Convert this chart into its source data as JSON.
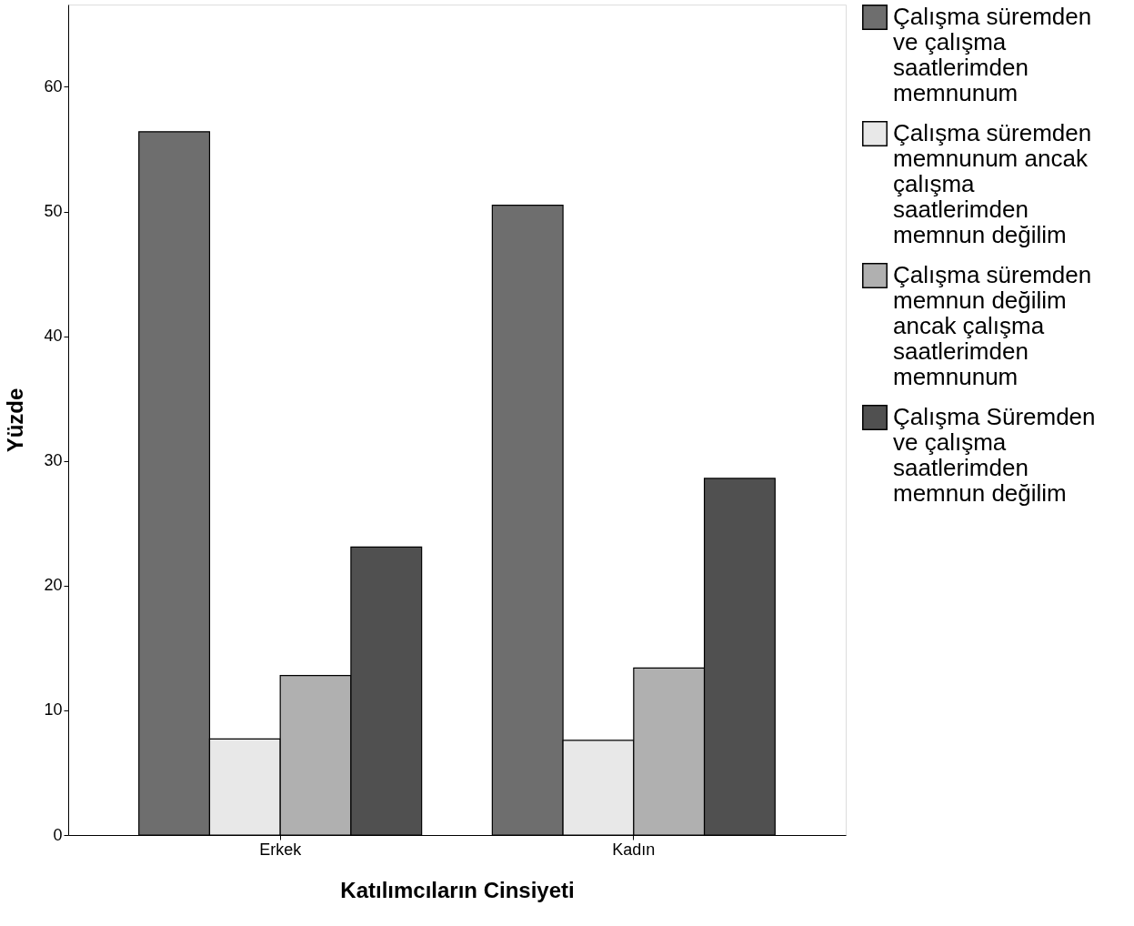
{
  "chart_data": {
    "type": "bar",
    "xlabel": "Katılımcıların Cinsiyeti",
    "ylabel": "Yüzde",
    "categories": [
      "Erkek",
      "Kadın"
    ],
    "series": [
      {
        "name": "Çalışma süremden ve çalışma saatlerimden memnunum",
        "color": "#6e6e6e",
        "values": [
          56.4,
          50.5
        ]
      },
      {
        "name": "Çalışma süremden memnunum ancak çalışma saatlerimden memnun değilim",
        "color": "#e8e8e8",
        "values": [
          7.7,
          7.6
        ]
      },
      {
        "name": "Çalışma süremden memnun değilim ancak çalışma saatlerimden memnunum",
        "color": "#b0b0b0",
        "values": [
          12.8,
          13.4
        ]
      },
      {
        "name": "Çalışma Süremden ve çalışma saatlerimden memnun değilim",
        "color": "#505050",
        "values": [
          23.1,
          28.6
        ]
      }
    ],
    "ylim": [
      0,
      66.6
    ],
    "yticks": [
      0,
      10,
      20,
      30,
      40,
      50,
      60
    ],
    "grid": false,
    "legend": "right"
  }
}
